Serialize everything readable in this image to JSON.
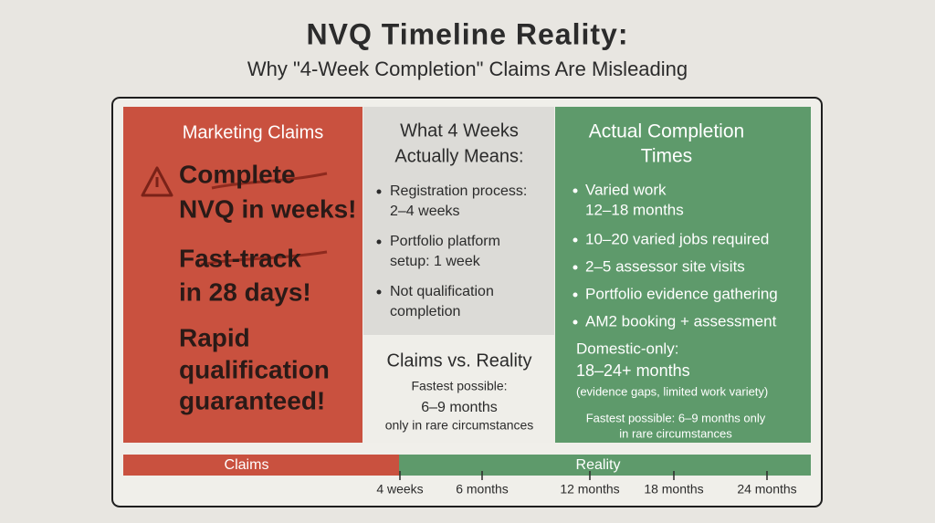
{
  "header": {
    "title": "NVQ Timeline Reality:",
    "subtitle": "Why \"4-Week Completion\" Claims Are Misleading"
  },
  "marketing": {
    "heading": "Marketing Claims",
    "claims": [
      [
        "Complete",
        "NVQ in weeks!"
      ],
      [
        "Fast-track",
        "in 28 days!"
      ],
      [
        "Rapid",
        "qualification",
        "guaranteed!"
      ]
    ]
  },
  "meaning": {
    "heading": [
      "What 4 Weeks",
      "Actually Means:"
    ],
    "bullets": [
      [
        "Registration process:",
        "2–4 weeks"
      ],
      [
        "Portfolio platform",
        "setup: 1 week"
      ],
      [
        "Not qualification",
        "completion"
      ]
    ]
  },
  "comparison": {
    "heading": "Claims vs. Reality",
    "lines": [
      "Fastest possible:",
      "6–9 months",
      "only in rare circumstances"
    ]
  },
  "actual": {
    "heading": [
      "Actual Completion",
      "Times"
    ],
    "bullets": [
      [
        "Varied work",
        "12–18 months"
      ],
      [
        "10–20 varied jobs required"
      ],
      [
        "2–5 assessor site visits"
      ],
      [
        "Portfolio evidence gathering"
      ],
      [
        "AM2 booking + assessment"
      ]
    ],
    "domestic": [
      "Domestic-only:",
      "18–24+ months",
      "(evidence gaps, limited work variety)"
    ],
    "note": [
      "Fastest possible: 6–9 months only",
      "in rare circumstances"
    ]
  },
  "timeline": {
    "labels": [
      "Claims",
      "Reality"
    ],
    "ticks": [
      "4 weeks",
      "6 months",
      "12 months",
      "18 months",
      "24 months"
    ]
  }
}
